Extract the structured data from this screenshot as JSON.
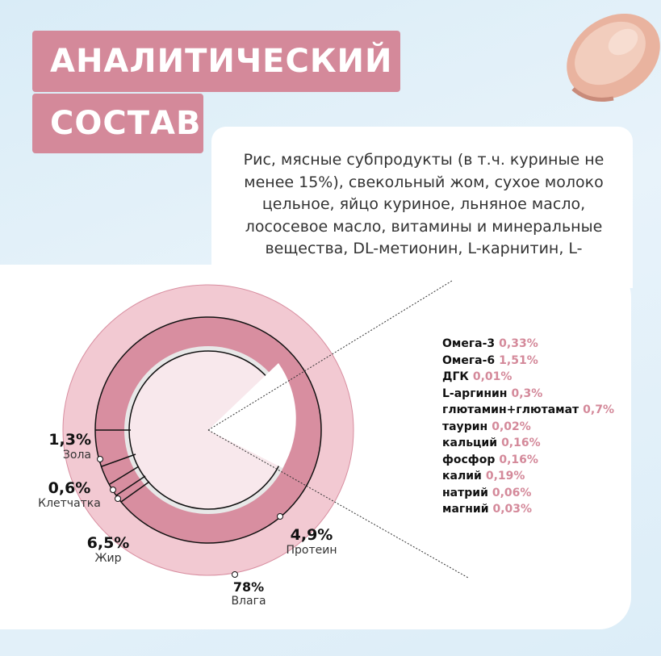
{
  "title": {
    "line1": "АНАЛИТИЧЕСКИЙ",
    "line2": "СОСТАВ"
  },
  "ingredients": {
    "lines": [
      "Рис, мясные субпродукты (в т.ч. куриные не",
      "менее 15%), свекольный жом, сухое молоко",
      "цельное, яйцо куриное, льняное масло,",
      "лососевое масло, витамины и минеральные",
      "вещества, DL-метионин, L-карнитин, L-триптофан."
    ]
  },
  "composition": [
    {
      "name": "Зола",
      "value": "1,3%"
    },
    {
      "name": "Клетчатка",
      "value": "0,6%"
    },
    {
      "name": "Жир",
      "value": "6,5%"
    },
    {
      "name": "Протеин",
      "value": "4,9%"
    },
    {
      "name": "Влага",
      "value": "78%"
    }
  ],
  "nutrients": [
    {
      "name": "Омега-3",
      "value": "0,33%"
    },
    {
      "name": "Омега-6",
      "value": "1,51%"
    },
    {
      "name": "ДГК",
      "value": "0,01%"
    },
    {
      "name": "L-аргинин",
      "value": "0,3%"
    },
    {
      "name": "глютамин+глютамат",
      "value": "0,7%"
    },
    {
      "name": "таурин",
      "value": "0,02%"
    },
    {
      "name": "кальций",
      "value": "0,16%"
    },
    {
      "name": "фосфор",
      "value": "0,16%"
    },
    {
      "name": "калий",
      "value": "0,19%"
    },
    {
      "name": "натрий",
      "value": "0,06%"
    },
    {
      "name": "магний",
      "value": "0,03%"
    }
  ],
  "colors": {
    "accent": "#d4899a",
    "ring_outer": "#f2c9d2",
    "ring_mid": "#d88ea0",
    "inner": "#f8e8ec"
  },
  "icons": {
    "meat": "meat-slice-icon"
  }
}
